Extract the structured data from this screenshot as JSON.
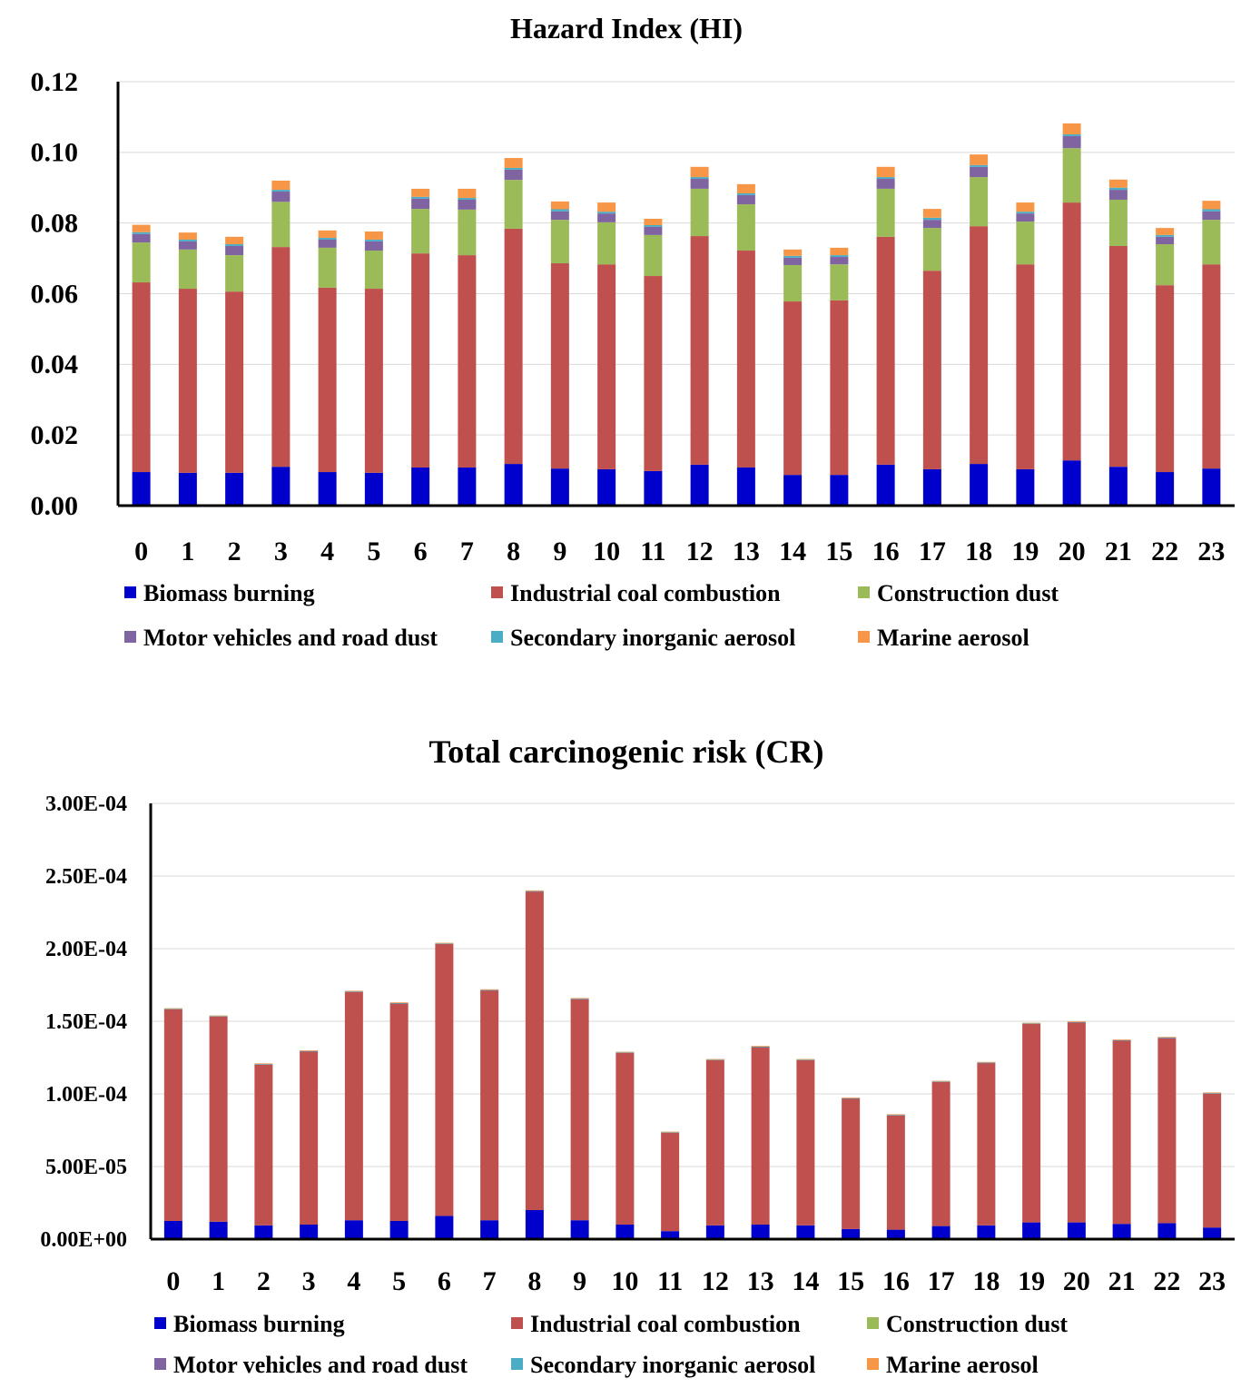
{
  "colors": {
    "Biomass burning": "#0000CC",
    "Industrial coal combustion": "#C0504D",
    "Construction dust": "#9BBB59",
    "Motor vehicles and road dust": "#8064A2",
    "Secondary inorganic aerosol": "#4BACC6",
    "Marine aerosol": "#F79646"
  },
  "chart_data": [
    {
      "type": "bar",
      "stacked": true,
      "title": "Hazard Index (HI)",
      "xlabel": "",
      "ylabel": "",
      "ylim": [
        0,
        0.12
      ],
      "yticks": [
        "0.00",
        "0.02",
        "0.04",
        "0.06",
        "0.08",
        "0.10",
        "0.12"
      ],
      "grid": true,
      "legend_position": "bottom",
      "categories": [
        "0",
        "1",
        "2",
        "3",
        "4",
        "5",
        "6",
        "7",
        "8",
        "9",
        "10",
        "11",
        "12",
        "13",
        "14",
        "15",
        "16",
        "17",
        "18",
        "19",
        "20",
        "21",
        "22",
        "23"
      ],
      "series": [
        {
          "name": "Biomass burning",
          "values": [
            0.0095,
            0.0093,
            0.0093,
            0.011,
            0.0095,
            0.0093,
            0.0108,
            0.0108,
            0.0118,
            0.0105,
            0.0103,
            0.0098,
            0.0116,
            0.0108,
            0.0087,
            0.0087,
            0.0116,
            0.0103,
            0.0118,
            0.0103,
            0.0128,
            0.011,
            0.0095,
            0.0105
          ]
        },
        {
          "name": "Industrial coal combustion",
          "values": [
            0.0537,
            0.0521,
            0.0513,
            0.0622,
            0.0522,
            0.0521,
            0.0606,
            0.0601,
            0.0666,
            0.0581,
            0.058,
            0.0552,
            0.0647,
            0.0614,
            0.0491,
            0.0494,
            0.0645,
            0.0562,
            0.0673,
            0.058,
            0.073,
            0.0625,
            0.0529,
            0.0578
          ]
        },
        {
          "name": "Construction dust",
          "values": [
            0.0113,
            0.0111,
            0.0103,
            0.0128,
            0.0113,
            0.0108,
            0.0126,
            0.0129,
            0.0138,
            0.0123,
            0.0119,
            0.0116,
            0.0134,
            0.0131,
            0.0103,
            0.0102,
            0.0136,
            0.0121,
            0.0139,
            0.0121,
            0.0154,
            0.0131,
            0.0116,
            0.0126
          ]
        },
        {
          "name": "Motor vehicles and road dust",
          "values": [
            0.0024,
            0.0023,
            0.0026,
            0.0029,
            0.0023,
            0.0026,
            0.0029,
            0.0028,
            0.0029,
            0.0024,
            0.0025,
            0.0023,
            0.0028,
            0.0026,
            0.0021,
            0.0021,
            0.0028,
            0.0023,
            0.0029,
            0.0023,
            0.0034,
            0.0028,
            0.0021,
            0.0024
          ]
        },
        {
          "name": "Secondary inorganic aerosol",
          "values": [
            0.0005,
            0.0005,
            0.0005,
            0.0005,
            0.0005,
            0.0005,
            0.0005,
            0.0005,
            0.0005,
            0.0006,
            0.0005,
            0.0005,
            0.0005,
            0.0005,
            0.0005,
            0.0005,
            0.0005,
            0.0006,
            0.0005,
            0.0005,
            0.0005,
            0.0006,
            0.0005,
            0.0006
          ]
        },
        {
          "name": "Marine aerosol",
          "values": [
            0.0021,
            0.002,
            0.0021,
            0.0026,
            0.0021,
            0.0023,
            0.0023,
            0.0026,
            0.0028,
            0.0022,
            0.0026,
            0.0018,
            0.0029,
            0.0026,
            0.0018,
            0.0021,
            0.0029,
            0.0025,
            0.003,
            0.0026,
            0.0031,
            0.0023,
            0.002,
            0.0024
          ]
        }
      ]
    },
    {
      "type": "bar",
      "stacked": true,
      "title": "Total carcinogenic risk (CR)",
      "xlabel": "",
      "ylabel": "",
      "ylim": [
        0,
        0.0003
      ],
      "yticks": [
        "0.00E+00",
        "5.00E-05",
        "1.00E-04",
        "1.50E-04",
        "2.00E-04",
        "2.50E-04",
        "3.00E-04"
      ],
      "grid": true,
      "legend_position": "bottom",
      "categories": [
        "0",
        "1",
        "2",
        "3",
        "4",
        "5",
        "6",
        "7",
        "8",
        "9",
        "10",
        "11",
        "12",
        "13",
        "14",
        "15",
        "16",
        "17",
        "18",
        "19",
        "20",
        "21",
        "22",
        "23"
      ],
      "series": [
        {
          "name": "Biomass burning",
          "values": [
            1.25e-05,
            1.2e-05,
            9.5e-06,
            1e-05,
            1.3e-05,
            1.25e-05,
            1.6e-05,
            1.3e-05,
            2e-05,
            1.3e-05,
            1e-05,
            5.5e-06,
            9.5e-06,
            1e-05,
            9.5e-06,
            7e-06,
            6.5e-06,
            9e-06,
            9.5e-06,
            1.15e-05,
            1.15e-05,
            1.05e-05,
            1.1e-05,
            8e-06
          ]
        },
        {
          "name": "Industrial coal combustion",
          "values": [
            0.0001457,
            0.0001412,
            0.0001107,
            0.0001192,
            0.0001572,
            0.0001497,
            0.0001872,
            0.0001582,
            0.0002192,
            0.0001522,
            0.0001182,
            6.77e-05,
            0.0001137,
            0.0001222,
            0.0001137,
            8.97e-05,
            7.87e-05,
            9.92e-05,
            0.0001117,
            0.0001367,
            0.0001377,
            0.0001262,
            0.0001272,
            9.22e-05
          ]
        },
        {
          "name": "Construction dust",
          "values": [
            0,
            0,
            0,
            0,
            0,
            0,
            0,
            0,
            0,
            0,
            0,
            0,
            0,
            0,
            0,
            0,
            0,
            0,
            0,
            0,
            0,
            0,
            0,
            0
          ]
        },
        {
          "name": "Motor vehicles and road dust",
          "values": [
            2e-07,
            2e-07,
            2e-07,
            2e-07,
            2e-07,
            2e-07,
            2e-07,
            2e-07,
            3e-07,
            2e-07,
            2e-07,
            2e-07,
            2e-07,
            2e-07,
            2e-07,
            2e-07,
            2e-07,
            2e-07,
            2e-07,
            2e-07,
            2e-07,
            2e-07,
            4e-07,
            2e-07
          ]
        },
        {
          "name": "Secondary inorganic aerosol",
          "values": [
            1e-07,
            1e-07,
            1e-07,
            1e-07,
            1e-07,
            1e-07,
            1e-07,
            1e-07,
            1e-07,
            1e-07,
            1e-07,
            1e-07,
            1e-07,
            1e-07,
            1e-07,
            1e-07,
            1e-07,
            1e-07,
            1e-07,
            1e-07,
            1e-07,
            1e-07,
            2e-07,
            1e-07
          ]
        },
        {
          "name": "Marine aerosol",
          "values": [
            5e-07,
            5e-07,
            5e-07,
            5e-07,
            5e-07,
            5e-07,
            5e-07,
            5e-07,
            5e-07,
            5e-07,
            5e-07,
            5e-07,
            5e-07,
            5e-07,
            5e-07,
            5e-07,
            5e-07,
            5e-07,
            5e-07,
            5e-07,
            5e-07,
            5e-07,
            5e-07,
            5e-07
          ]
        }
      ]
    }
  ]
}
